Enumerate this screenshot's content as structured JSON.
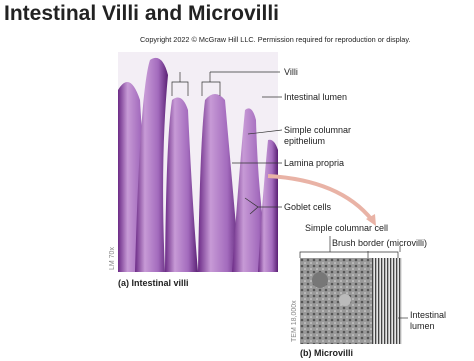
{
  "header": {
    "title": "Intestinal Villi and Microvilli",
    "copyright": "Copyright 2022 © McGraw Hill LLC. Permission required for reproduction or display."
  },
  "panel_a": {
    "caption": "(a) Intestinal villi",
    "magnification": "LM 70x",
    "labels": [
      [
        "Villi"
      ],
      [
        "Intestinal lumen"
      ],
      [
        "Simple columnar",
        "epithelium"
      ],
      [
        "Lamina propria"
      ],
      [
        "Goblet cells"
      ]
    ]
  },
  "panel_b": {
    "caption": "(b) Microvilli",
    "magnification": "TEM 18,000x",
    "labels": [
      [
        "Simple columnar cell"
      ],
      [
        "Brush border (microvilli)"
      ],
      [
        "Intestinal",
        "lumen"
      ]
    ]
  }
}
